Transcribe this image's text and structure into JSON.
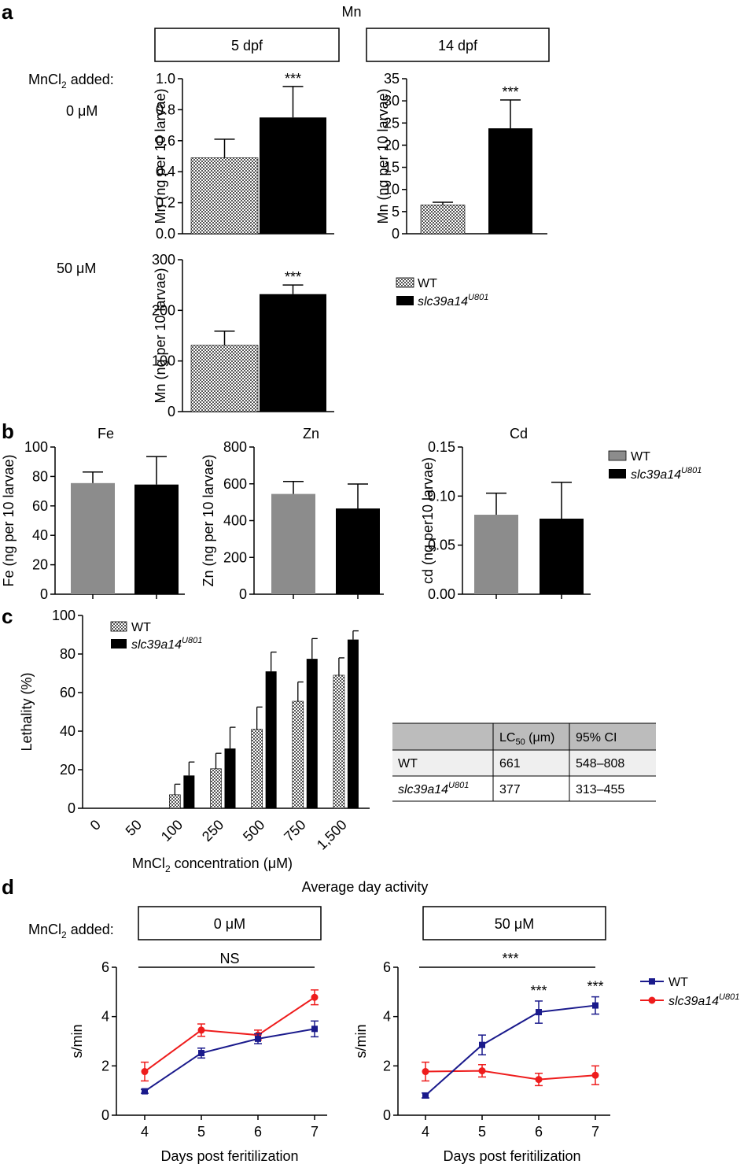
{
  "colors": {
    "wt_gray": "#8c8c8c",
    "mutant_black": "#000000",
    "wt_blue": "#1a1a8c",
    "mutant_red": "#ee1c1c",
    "table_header": "#bcbcbc",
    "table_row": "#efefef"
  },
  "panel_letters": {
    "a": "a",
    "b": "b",
    "c": "c",
    "d": "d"
  },
  "panel_a": {
    "element_title": "Mn",
    "condition_label": "MnCl2 added:",
    "dose_low": "0 μM",
    "dose_high": "50 μM",
    "time_box_left": "5 dpf",
    "time_box_right": "14 dpf",
    "legend": [
      "WT",
      "slc39a14U801"
    ]
  },
  "panel_b": {
    "legend": [
      "WT",
      "slc39a14U801"
    ]
  },
  "panel_d": {
    "title": "Average day activity",
    "condition_label": "MnCl2 added:",
    "box_left": "0 μM",
    "box_right": "50 μM",
    "legend": [
      "WT",
      "slc39a14U801"
    ]
  },
  "lc50_table": {
    "headers": [
      "",
      "LC50 (μm)",
      "95% CI"
    ],
    "rows": [
      [
        "WT",
        "661",
        "548–808"
      ],
      [
        "slc39a14U801",
        "377",
        "313–455"
      ]
    ]
  },
  "chart_data": [
    {
      "id": "a1",
      "type": "bar",
      "title": "5 dpf",
      "ylabel": "Mn (ng per 10 larvae)",
      "ylim": [
        0,
        1.0
      ],
      "yticks": [
        "0.0",
        "0.2",
        "0.4",
        "0.6",
        "0.8",
        "1.0"
      ],
      "categories": [
        "WT",
        "slc39a14U801"
      ],
      "values": [
        0.49,
        0.75
      ],
      "errors": [
        0.12,
        0.2
      ],
      "annotations": [
        "",
        "***"
      ]
    },
    {
      "id": "a2",
      "type": "bar",
      "title": "14 dpf",
      "ylabel": "Mn (ng per 10 larvae)",
      "ylim": [
        0,
        35
      ],
      "yticks": [
        "0",
        "5",
        "10",
        "15",
        "20",
        "25",
        "30",
        "35"
      ],
      "categories": [
        "WT",
        "slc39a14U801"
      ],
      "values": [
        6.5,
        23.8
      ],
      "errors": [
        0.6,
        6.4
      ],
      "annotations": [
        "",
        "***"
      ]
    },
    {
      "id": "a3",
      "type": "bar",
      "ylabel": "Mn (ng per 10 larvae)",
      "ylim": [
        0,
        300
      ],
      "yticks": [
        "0",
        "100",
        "200",
        "300"
      ],
      "categories": [
        "WT",
        "slc39a14U801"
      ],
      "values": [
        131,
        232
      ],
      "errors": [
        28,
        18
      ],
      "annotations": [
        "",
        "***"
      ]
    },
    {
      "id": "b1",
      "type": "bar",
      "title": "Fe",
      "ylabel": "Fe (ng per 10 larvae)",
      "ylim": [
        0,
        100
      ],
      "yticks": [
        "0",
        "20",
        "40",
        "60",
        "80",
        "100"
      ],
      "categories": [
        "WT",
        "slc39a14U801"
      ],
      "values": [
        75.5,
        74.5
      ],
      "errors": [
        7.5,
        19
      ]
    },
    {
      "id": "b2",
      "type": "bar",
      "title": "Zn",
      "ylabel": "Zn (ng per 10 larvae)",
      "ylim": [
        0,
        800
      ],
      "yticks": [
        "0",
        "200",
        "400",
        "600",
        "800"
      ],
      "categories": [
        "WT",
        "slc39a14U801"
      ],
      "values": [
        545,
        466
      ],
      "errors": [
        68,
        133
      ]
    },
    {
      "id": "b3",
      "type": "bar",
      "title": "Cd",
      "ylabel": "cd (ng per10 larvae)",
      "ylim": [
        0,
        0.15
      ],
      "yticks": [
        "0.00",
        "0.05",
        "0.10",
        "0.15"
      ],
      "categories": [
        "WT",
        "slc39a14U801"
      ],
      "values": [
        0.081,
        0.077
      ],
      "errors": [
        0.022,
        0.037
      ]
    },
    {
      "id": "c",
      "type": "bar",
      "ylabel": "Lethality (%)",
      "xlabel": "MnCl2 concentration (μM)",
      "ylim": [
        0,
        100
      ],
      "yticks": [
        "0",
        "20",
        "40",
        "60",
        "80",
        "100"
      ],
      "categories": [
        "0",
        "50",
        "100",
        "250",
        "500",
        "750",
        "1,500"
      ],
      "series": [
        {
          "name": "WT",
          "values": [
            0,
            0,
            7,
            20.5,
            41,
            55.5,
            69
          ],
          "errors": [
            0,
            0,
            5.5,
            8,
            11.5,
            10,
            9
          ]
        },
        {
          "name": "slc39a14U801",
          "values": [
            0,
            0,
            17,
            31,
            71,
            77.5,
            87.5
          ],
          "errors": [
            0,
            0,
            7,
            11,
            10,
            10.5,
            4.5
          ]
        }
      ]
    },
    {
      "id": "d1",
      "type": "line",
      "ylabel": "s/min",
      "xlabel": "Days post feritilization",
      "x": [
        4,
        5,
        6,
        7
      ],
      "ylim": [
        0,
        6
      ],
      "yticks": [
        "0",
        "2",
        "4",
        "6"
      ],
      "significance_bar": "NS",
      "series": [
        {
          "name": "WT",
          "values": [
            0.97,
            2.52,
            3.1,
            3.5
          ],
          "errors": [
            0.08,
            0.2,
            0.2,
            0.32
          ]
        },
        {
          "name": "slc39a14U801",
          "values": [
            1.77,
            3.45,
            3.25,
            4.78
          ],
          "errors": [
            0.38,
            0.25,
            0.2,
            0.3
          ]
        }
      ]
    },
    {
      "id": "d2",
      "type": "line",
      "ylabel": "s/min",
      "xlabel": "Days post feritilization",
      "x": [
        4,
        5,
        6,
        7
      ],
      "ylim": [
        0,
        6
      ],
      "yticks": [
        "0",
        "2",
        "4",
        "6"
      ],
      "significance_bar": "***",
      "point_annotations": [
        "",
        "",
        "***",
        "***"
      ],
      "series": [
        {
          "name": "WT",
          "values": [
            0.8,
            2.85,
            4.18,
            4.45
          ],
          "errors": [
            0.1,
            0.4,
            0.45,
            0.35
          ]
        },
        {
          "name": "slc39a14U801",
          "values": [
            1.77,
            1.8,
            1.45,
            1.62
          ],
          "errors": [
            0.38,
            0.25,
            0.25,
            0.38
          ]
        }
      ]
    }
  ]
}
